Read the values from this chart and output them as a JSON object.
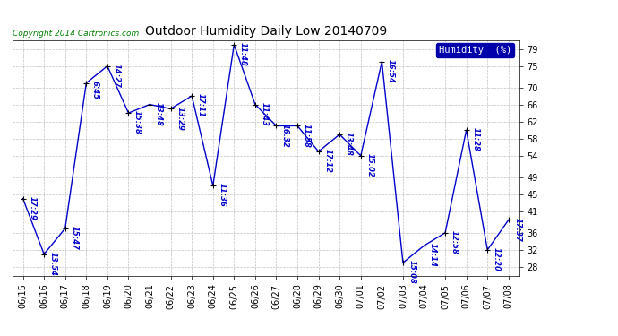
{
  "title": "Outdoor Humidity Daily Low 20140709",
  "copyright": "Copyright 2014 Cartronics.com",
  "legend_label": "Humidity  (%)",
  "background_color": "#ffffff",
  "plot_bg_color": "#ffffff",
  "grid_color": "#bbbbbb",
  "line_color": "#0000cc",
  "marker_color": "#000000",
  "ylim": [
    26,
    81
  ],
  "yticks": [
    28,
    32,
    36,
    41,
    45,
    49,
    54,
    58,
    62,
    66,
    70,
    75,
    79
  ],
  "dates": [
    "06/15",
    "06/16",
    "06/17",
    "06/18",
    "06/19",
    "06/20",
    "06/21",
    "06/22",
    "06/23",
    "06/24",
    "06/25",
    "06/26",
    "06/27",
    "06/28",
    "06/29",
    "06/30",
    "07/01",
    "07/02",
    "07/03",
    "07/04",
    "07/05",
    "07/06",
    "07/07",
    "07/08"
  ],
  "values": [
    44,
    31,
    37,
    71,
    75,
    64,
    66,
    65,
    68,
    47,
    80,
    66,
    61,
    61,
    55,
    59,
    54,
    76,
    29,
    33,
    36,
    60,
    32,
    39
  ],
  "annotations": [
    "17:29",
    "13:54",
    "15:47",
    "6:45",
    "14:27",
    "15:38",
    "13:48",
    "13:29",
    "17:11",
    "11:36",
    "11:48",
    "11:43",
    "16:32",
    "11:58",
    "17:12",
    "13:48",
    "15:02",
    "16:54",
    "15:08",
    "14:14",
    "12:58",
    "11:28",
    "12:20",
    "17:37"
  ],
  "ann_fontsize": 6.0,
  "title_fontsize": 10,
  "tick_fontsize": 7,
  "copyright_fontsize": 6.5
}
